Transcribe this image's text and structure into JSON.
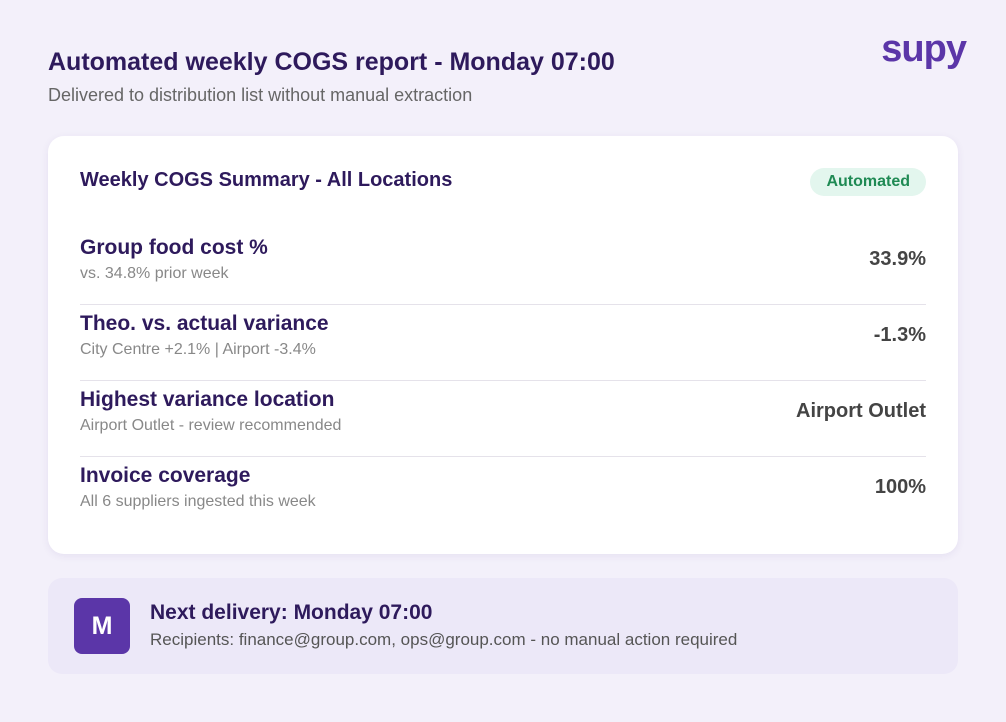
{
  "header": {
    "title": "Automated weekly COGS report - Monday 07:00",
    "subtitle": "Delivered to distribution list without manual extraction",
    "logo": "supy"
  },
  "card": {
    "title": "Weekly COGS Summary - All Locations",
    "badge": "Automated",
    "rows": [
      {
        "label": "Group food cost %",
        "detail": "vs. 34.8% prior week",
        "value": "33.9%"
      },
      {
        "label": "Theo. vs. actual variance",
        "detail": "City Centre +2.1% | Airport -3.4%",
        "value": "-1.3%"
      },
      {
        "label": "Highest variance location",
        "detail": "Airport Outlet - review recommended",
        "value": "Airport Outlet"
      },
      {
        "label": "Invoice coverage",
        "detail": "All 6 suppliers ingested this week",
        "value": "100%"
      }
    ]
  },
  "delivery": {
    "avatar": "M",
    "title": "Next delivery: Monday 07:00",
    "detail": "Recipients: finance@group.com, ops@group.com - no manual action required"
  }
}
